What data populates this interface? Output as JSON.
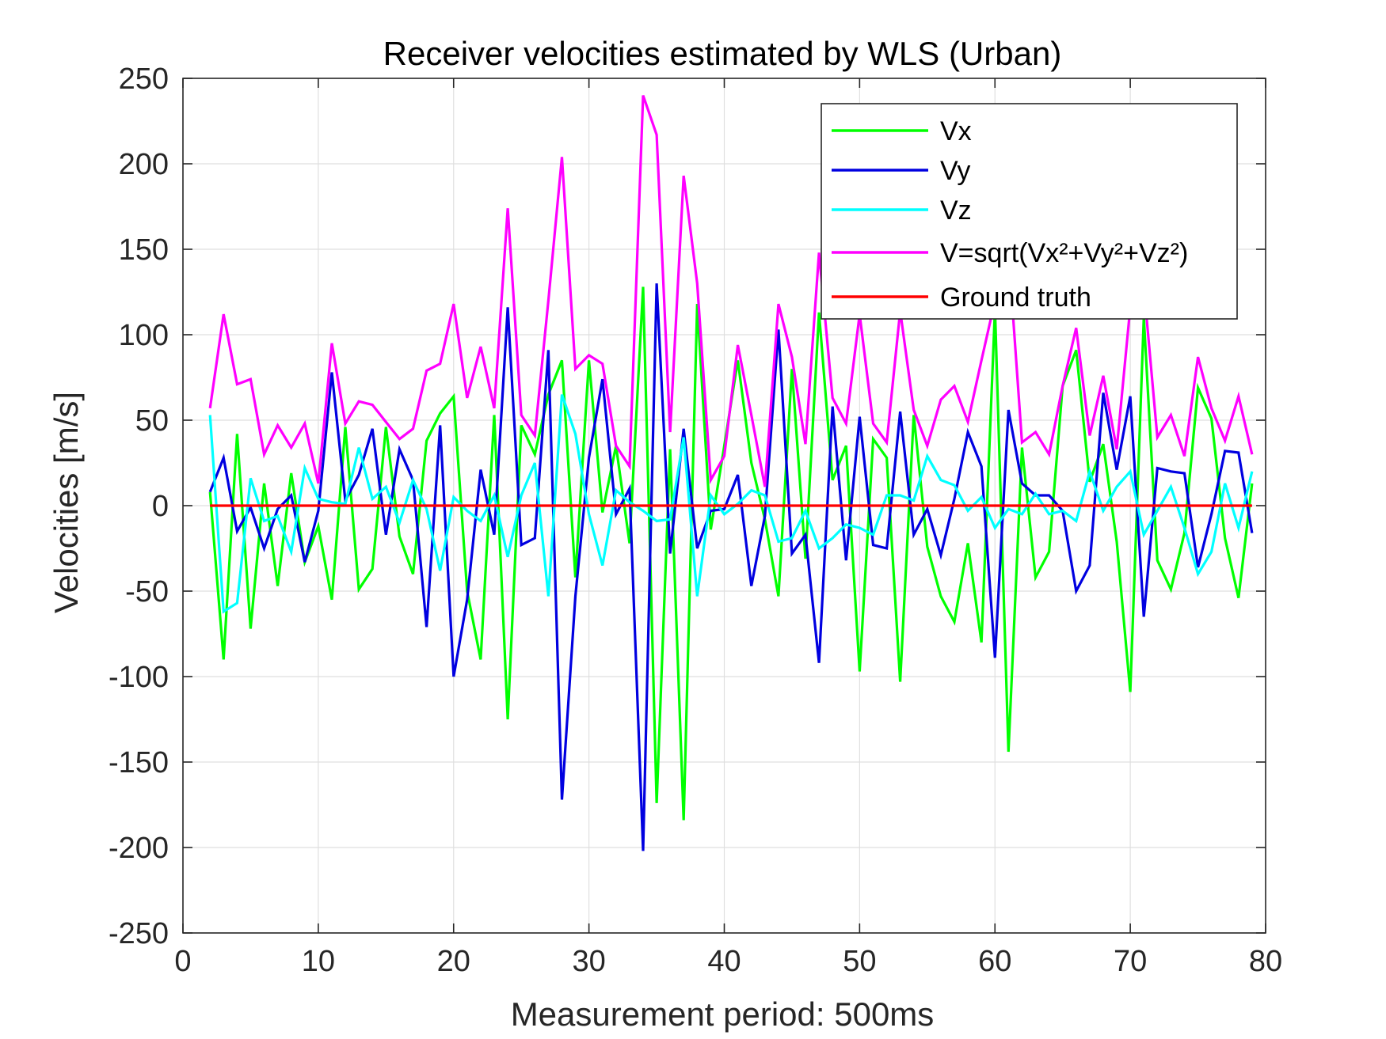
{
  "chart_data": {
    "type": "line",
    "title": "Receiver velocities estimated by WLS (Urban)",
    "xlabel": "Measurement period: 500ms",
    "ylabel": "Velocities [m/s]",
    "xlim": [
      0,
      80
    ],
    "ylim": [
      -250,
      250
    ],
    "x_ticks": [
      "0",
      "10",
      "20",
      "30",
      "40",
      "50",
      "60",
      "70",
      "80"
    ],
    "y_ticks": [
      "250",
      "200",
      "150",
      "100",
      "50",
      "0",
      "-50",
      "-100",
      "-150",
      "-200",
      "-250"
    ],
    "grid": true,
    "legend_position": "top-right",
    "x": [
      2,
      3,
      4,
      5,
      6,
      7,
      8,
      9,
      10,
      11,
      12,
      13,
      14,
      15,
      16,
      17,
      18,
      19,
      20,
      21,
      22,
      23,
      24,
      25,
      26,
      27,
      28,
      29,
      30,
      31,
      32,
      33,
      34,
      35,
      36,
      37,
      38,
      39,
      40,
      41,
      42,
      43,
      44,
      45,
      46,
      47,
      48,
      49,
      50,
      51,
      52,
      53,
      54,
      55,
      56,
      57,
      58,
      59,
      60,
      61,
      62,
      63,
      64,
      65,
      66,
      67,
      68,
      69,
      70,
      71,
      72,
      73,
      74,
      75,
      76,
      77,
      78,
      79
    ],
    "series": [
      {
        "name": "Vx",
        "color": "#00ff00",
        "values": [
          8,
          -90,
          42,
          -72,
          13,
          -47,
          19,
          -33,
          -12,
          -55,
          46,
          -49,
          -37,
          46,
          -18,
          -40,
          38,
          54,
          64,
          -50,
          -90,
          53,
          -125,
          47,
          30,
          65,
          85,
          -42,
          85,
          -4,
          35,
          -22,
          128,
          -174,
          33,
          -184,
          118,
          -14,
          35,
          85,
          25,
          -8,
          -53,
          80,
          -31,
          113,
          15,
          35,
          -97,
          39,
          28,
          -103,
          53,
          -24,
          -53,
          -68,
          -22,
          -80,
          115,
          -144,
          34,
          -42,
          -27,
          70,
          91,
          14,
          36,
          -21,
          -109,
          110,
          -32,
          -49,
          -16,
          69,
          51,
          -19,
          -54,
          13
        ]
      },
      {
        "name": "Vy",
        "color": "#0000e0",
        "values": [
          8,
          28,
          -15,
          -1,
          -25,
          -2,
          6,
          -33,
          -3,
          78,
          3,
          18,
          45,
          -17,
          33,
          15,
          -71,
          47,
          -100,
          -55,
          21,
          -17,
          116,
          -23,
          -19,
          91,
          -172,
          -53,
          28,
          74,
          -5,
          10,
          -202,
          130,
          -28,
          45,
          -25,
          -3,
          -2,
          18,
          -47,
          -6,
          103,
          -28,
          -17,
          -92,
          58,
          -32,
          52,
          -23,
          -25,
          55,
          -17,
          -2,
          -29,
          4,
          43,
          23,
          -89,
          56,
          13,
          6,
          6,
          -3,
          -50,
          -35,
          66,
          21,
          64,
          -65,
          22,
          20,
          19,
          -36,
          -5,
          32,
          31,
          -16
        ]
      },
      {
        "name": "Vz",
        "color": "#00ffff",
        "values": [
          53,
          -62,
          -57,
          16,
          -9,
          -6,
          -27,
          22,
          4,
          2,
          1,
          34,
          4,
          11,
          -10,
          15,
          -2,
          -38,
          5,
          -3,
          -9,
          6,
          -30,
          6,
          25,
          -53,
          65,
          42,
          -5,
          -35,
          9,
          2,
          -3,
          -9,
          -8,
          40,
          -53,
          6,
          -5,
          1,
          9,
          6,
          -21,
          -19,
          -3,
          -25,
          -19,
          -11,
          -13,
          -17,
          6,
          6,
          3,
          29,
          15,
          12,
          -3,
          5,
          -13,
          -2,
          -5,
          7,
          -5,
          -3,
          -9,
          20,
          -3,
          11,
          20,
          -17,
          -3,
          11,
          -13,
          -40,
          -27,
          13,
          -13,
          20
        ]
      },
      {
        "name": "V=sqrt(Vx²+Vy²+Vz²)",
        "color": "#ff00ff",
        "values": [
          57,
          112,
          71,
          74,
          30,
          47,
          34,
          48,
          13,
          95,
          48,
          61,
          59,
          49,
          39,
          45,
          79,
          83,
          118,
          63,
          93,
          57,
          174,
          53,
          41,
          120,
          204,
          80,
          88,
          83,
          35,
          23,
          240,
          217,
          43,
          193,
          130,
          15,
          29,
          94,
          53,
          11,
          118,
          87,
          36,
          148,
          63,
          48,
          112,
          48,
          37,
          114,
          56,
          35,
          62,
          70,
          49,
          85,
          120,
          149,
          37,
          43,
          30,
          70,
          104,
          41,
          76,
          33,
          116,
          128,
          40,
          53,
          29,
          87,
          57,
          38,
          64,
          30
        ]
      },
      {
        "name": "Ground truth",
        "color": "#ff0000",
        "values": [
          0,
          0,
          0,
          0,
          0,
          0,
          0,
          0,
          0,
          0,
          0,
          0,
          0,
          0,
          0,
          0,
          0,
          0,
          0,
          0,
          0,
          0,
          0,
          0,
          0,
          0,
          0,
          0,
          0,
          0,
          0,
          0,
          0,
          0,
          0,
          0,
          0,
          0,
          0,
          0,
          0,
          0,
          0,
          0,
          0,
          0,
          0,
          0,
          0,
          0,
          0,
          0,
          0,
          0,
          0,
          0,
          0,
          0,
          0,
          0,
          0,
          0,
          0,
          0,
          0,
          0,
          0,
          0,
          0,
          0,
          0,
          0,
          0,
          0,
          0,
          0,
          0,
          0
        ]
      }
    ]
  }
}
